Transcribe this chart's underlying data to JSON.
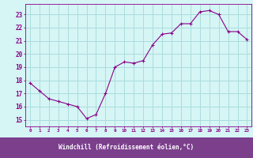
{
  "x": [
    0,
    1,
    2,
    3,
    4,
    5,
    6,
    7,
    8,
    9,
    10,
    11,
    12,
    13,
    14,
    15,
    16,
    17,
    18,
    19,
    20,
    21,
    22,
    23
  ],
  "y": [
    17.8,
    17.2,
    16.6,
    16.4,
    16.2,
    16.0,
    15.1,
    15.4,
    17.0,
    19.0,
    19.4,
    19.3,
    19.5,
    20.7,
    21.5,
    21.6,
    22.3,
    22.3,
    23.2,
    23.3,
    23.0,
    21.7,
    21.7,
    21.1
  ],
  "line_color": "#880088",
  "marker": "+",
  "bg_color": "#d6f5f5",
  "grid_color": "#aadddd",
  "xlabel": "Windchill (Refroidissement éolien,°C)",
  "xlabel_bg": "#7b3f8c",
  "xlabel_color": "#ffffff",
  "ytick_labels": [
    "15",
    "16",
    "17",
    "18",
    "19",
    "20",
    "21",
    "22",
    "23"
  ],
  "ytick_values": [
    15,
    16,
    17,
    18,
    19,
    20,
    21,
    22,
    23
  ],
  "xtick_labels": [
    "0",
    "1",
    "2",
    "3",
    "4",
    "5",
    "6",
    "7",
    "8",
    "9",
    "10",
    "11",
    "12",
    "13",
    "14",
    "15",
    "16",
    "17",
    "18",
    "19",
    "20",
    "21",
    "22",
    "23"
  ],
  "ylim": [
    14.5,
    23.8
  ],
  "xlim": [
    -0.5,
    23.5
  ],
  "tick_color": "#880088",
  "axis_color": "#880088"
}
